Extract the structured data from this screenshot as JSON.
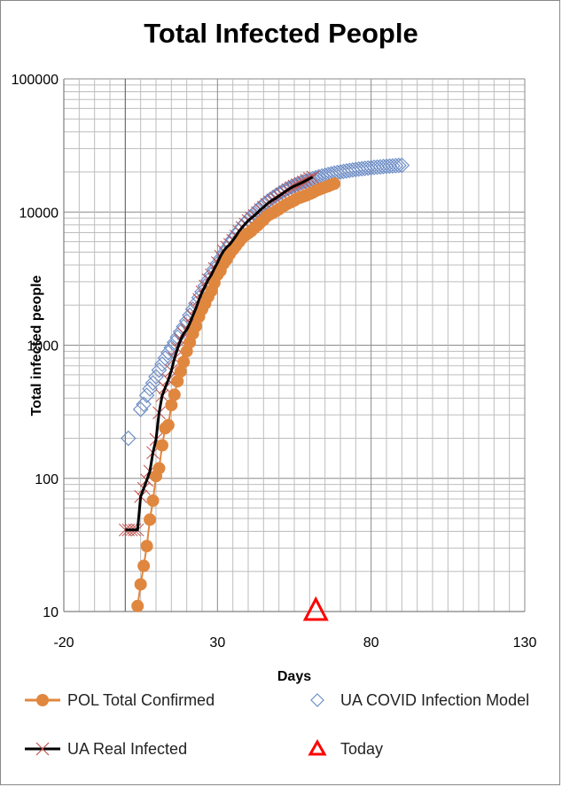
{
  "chart_data": {
    "type": "scatter",
    "title": "Total Infected People",
    "xlabel": "Days",
    "ylabel": "Total infected people",
    "xlim": [
      -20,
      130
    ],
    "ylim": [
      10,
      100000
    ],
    "yscale": "log",
    "x_ticks": [
      "-20",
      "30",
      "80",
      "130"
    ],
    "y_ticks": [
      "10",
      "100",
      "1000",
      "10000",
      "100000"
    ],
    "grid": true,
    "legend_position": "bottom",
    "series": [
      {
        "name": "POL Total Confirmed",
        "color": "#E0873F",
        "marker": "circle",
        "points": [
          [
            4,
            11
          ],
          [
            5,
            16
          ],
          [
            6,
            22
          ],
          [
            7,
            31
          ],
          [
            8,
            49
          ],
          [
            9,
            68
          ],
          [
            10,
            104
          ],
          [
            11,
            119
          ],
          [
            12,
            177
          ],
          [
            13,
            238
          ],
          [
            14,
            251
          ],
          [
            15,
            355
          ],
          [
            16,
            425
          ],
          [
            17,
            536
          ],
          [
            18,
            634
          ],
          [
            19,
            749
          ],
          [
            20,
            901
          ],
          [
            21,
            1051
          ],
          [
            22,
            1221
          ],
          [
            23,
            1389
          ],
          [
            24,
            1638
          ],
          [
            25,
            1862
          ],
          [
            26,
            2055
          ],
          [
            27,
            2311
          ],
          [
            28,
            2554
          ],
          [
            29,
            2946
          ],
          [
            30,
            3383
          ],
          [
            31,
            3627
          ],
          [
            32,
            4102
          ],
          [
            33,
            4413
          ],
          [
            34,
            4848
          ],
          [
            35,
            5205
          ],
          [
            36,
            5575
          ],
          [
            37,
            5955
          ],
          [
            38,
            6356
          ],
          [
            39,
            6674
          ],
          [
            40,
            6934
          ],
          [
            41,
            7202
          ],
          [
            42,
            7582
          ],
          [
            43,
            7918
          ],
          [
            44,
            8379
          ],
          [
            45,
            8742
          ],
          [
            46,
            9287
          ],
          [
            47,
            9593
          ],
          [
            48,
            9856
          ],
          [
            49,
            10169
          ],
          [
            50,
            10511
          ],
          [
            51,
            10892
          ],
          [
            52,
            11273
          ],
          [
            53,
            11617
          ],
          [
            54,
            11902
          ],
          [
            55,
            12218
          ],
          [
            56,
            12640
          ],
          [
            57,
            12877
          ],
          [
            58,
            13105
          ],
          [
            59,
            13375
          ],
          [
            60,
            13693
          ],
          [
            61,
            14006
          ],
          [
            62,
            14431
          ],
          [
            63,
            14740
          ],
          [
            64,
            15047
          ],
          [
            65,
            15366
          ],
          [
            66,
            15651
          ],
          [
            67,
            15996
          ],
          [
            68,
            16326
          ]
        ]
      },
      {
        "name": "UA COVID Infection Model",
        "color": "#6F8FC8",
        "marker": "diamond",
        "points": [
          [
            1,
            200
          ],
          [
            5,
            330
          ],
          [
            6,
            360
          ],
          [
            7,
            420
          ],
          [
            8,
            470
          ],
          [
            9,
            520
          ],
          [
            10,
            580
          ],
          [
            11,
            650
          ],
          [
            12,
            720
          ],
          [
            13,
            800
          ],
          [
            14,
            880
          ],
          [
            15,
            960
          ],
          [
            16,
            1050
          ],
          [
            17,
            1150
          ],
          [
            18,
            1260
          ],
          [
            19,
            1380
          ],
          [
            20,
            1520
          ],
          [
            21,
            1680
          ],
          [
            22,
            1860
          ],
          [
            23,
            2060
          ],
          [
            24,
            2280
          ],
          [
            25,
            2520
          ],
          [
            26,
            2790
          ],
          [
            27,
            3080
          ],
          [
            28,
            3400
          ],
          [
            29,
            3740
          ],
          [
            30,
            4100
          ],
          [
            31,
            4490
          ],
          [
            32,
            4900
          ],
          [
            33,
            5330
          ],
          [
            34,
            5780
          ],
          [
            35,
            6250
          ],
          [
            36,
            6730
          ],
          [
            37,
            7230
          ],
          [
            38,
            7740
          ],
          [
            39,
            8250
          ],
          [
            40,
            8770
          ],
          [
            41,
            9290
          ],
          [
            42,
            9810
          ],
          [
            43,
            10330
          ],
          [
            44,
            10840
          ],
          [
            45,
            11350
          ],
          [
            46,
            11850
          ],
          [
            47,
            12340
          ],
          [
            48,
            12820
          ],
          [
            49,
            13290
          ],
          [
            50,
            13740
          ],
          [
            51,
            14180
          ],
          [
            52,
            14610
          ],
          [
            53,
            15020
          ],
          [
            54,
            15420
          ],
          [
            55,
            15800
          ],
          [
            56,
            16170
          ],
          [
            57,
            16530
          ],
          [
            58,
            16870
          ],
          [
            59,
            17200
          ],
          [
            60,
            17510
          ],
          [
            61,
            17810
          ],
          [
            62,
            18100
          ],
          [
            63,
            18380
          ],
          [
            64,
            18640
          ],
          [
            65,
            18890
          ],
          [
            66,
            19130
          ],
          [
            67,
            19360
          ],
          [
            68,
            19580
          ],
          [
            69,
            19790
          ],
          [
            70,
            19990
          ],
          [
            71,
            20180
          ],
          [
            72,
            20360
          ],
          [
            73,
            20530
          ],
          [
            74,
            20690
          ],
          [
            75,
            20850
          ],
          [
            76,
            21000
          ],
          [
            77,
            21140
          ],
          [
            78,
            21270
          ],
          [
            79,
            21400
          ],
          [
            80,
            21520
          ],
          [
            81,
            21640
          ],
          [
            82,
            21750
          ],
          [
            83,
            21850
          ],
          [
            84,
            21950
          ],
          [
            85,
            22040
          ],
          [
            86,
            22130
          ],
          [
            87,
            22210
          ],
          [
            88,
            22290
          ],
          [
            89,
            22370
          ],
          [
            90,
            22440
          ]
        ]
      },
      {
        "name": "UA Real Infected",
        "color": "#000000",
        "marker": "x",
        "marker_color": "#C0504D",
        "points": [
          [
            0,
            41
          ],
          [
            1,
            41
          ],
          [
            2,
            41
          ],
          [
            3,
            41
          ],
          [
            4,
            41
          ],
          [
            5,
            73
          ],
          [
            6,
            84
          ],
          [
            7,
            97
          ],
          [
            8,
            113
          ],
          [
            9,
            156
          ],
          [
            10,
            196
          ],
          [
            11,
            311
          ],
          [
            12,
            418
          ],
          [
            13,
            480
          ],
          [
            14,
            549
          ],
          [
            15,
            645
          ],
          [
            16,
            794
          ],
          [
            17,
            942
          ],
          [
            18,
            1096
          ],
          [
            19,
            1225
          ],
          [
            20,
            1308
          ],
          [
            21,
            1462
          ],
          [
            22,
            1668
          ],
          [
            23,
            1892
          ],
          [
            24,
            2203
          ],
          [
            25,
            2511
          ],
          [
            26,
            2777
          ],
          [
            27,
            3102
          ],
          [
            28,
            3372
          ],
          [
            29,
            3764
          ],
          [
            30,
            4161
          ],
          [
            31,
            4662
          ],
          [
            32,
            5106
          ],
          [
            33,
            5449
          ],
          [
            34,
            5710
          ],
          [
            35,
            6125
          ],
          [
            36,
            6592
          ],
          [
            37,
            7170
          ],
          [
            38,
            7647
          ],
          [
            39,
            8125
          ],
          [
            40,
            8617
          ],
          [
            41,
            9009
          ],
          [
            42,
            9410
          ],
          [
            43,
            9866
          ],
          [
            44,
            10406
          ],
          [
            45,
            10861
          ],
          [
            46,
            11411
          ],
          [
            47,
            11913
          ],
          [
            48,
            12331
          ],
          [
            49,
            12697
          ],
          [
            50,
            13184
          ],
          [
            51,
            13691
          ],
          [
            52,
            14195
          ],
          [
            53,
            14710
          ],
          [
            54,
            15232
          ],
          [
            55,
            15648
          ],
          [
            56,
            16023
          ],
          [
            57,
            16425
          ],
          [
            58,
            16847
          ],
          [
            59,
            17330
          ],
          [
            60,
            17858
          ],
          [
            61,
            18291
          ]
        ]
      },
      {
        "name": "Today",
        "color": "#FF0000",
        "marker": "triangle",
        "points": [
          [
            62,
            10
          ]
        ]
      }
    ]
  }
}
